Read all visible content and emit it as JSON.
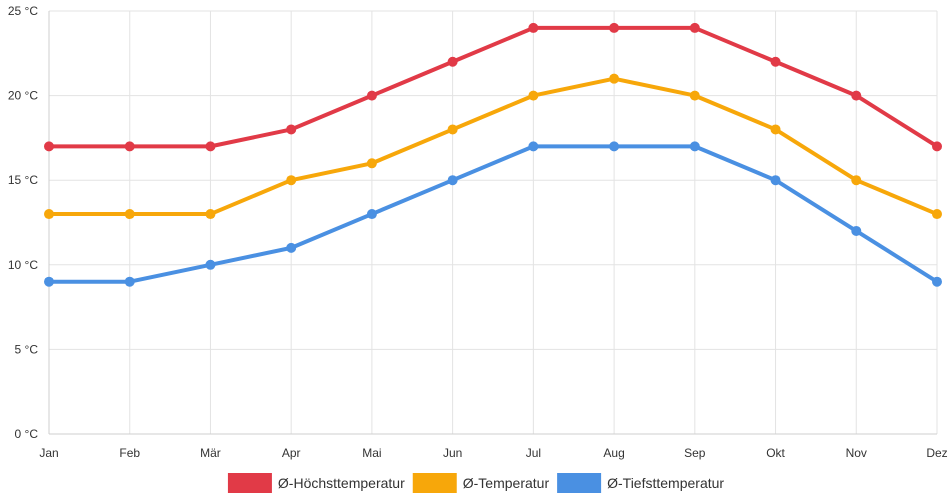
{
  "chart_data": {
    "type": "line",
    "title": "",
    "xlabel": "",
    "ylabel": "",
    "categories": [
      "Jan",
      "Feb",
      "Mär",
      "Apr",
      "Mai",
      "Jun",
      "Jul",
      "Aug",
      "Sep",
      "Okt",
      "Nov",
      "Dez"
    ],
    "ylim": [
      0,
      25
    ],
    "y_ticks": [
      0,
      5,
      10,
      15,
      20,
      25
    ],
    "y_tick_labels": [
      "0 °C",
      "5 °C",
      "10 °C",
      "15 °C",
      "20 °C",
      "25 °C"
    ],
    "grid": true,
    "legend_position": "bottom-center",
    "series": [
      {
        "name": "Ø-Höchsttemperatur",
        "color": "#e13a47",
        "values": [
          17,
          17,
          17,
          18,
          20,
          22,
          24,
          24,
          24,
          22,
          20,
          17
        ]
      },
      {
        "name": "Ø-Temperatur",
        "color": "#f7a70a",
        "values": [
          13,
          13,
          13,
          15,
          16,
          18,
          20,
          21,
          20,
          18,
          15,
          13
        ]
      },
      {
        "name": "Ø-Tiefsttemperatur",
        "color": "#4a90e2",
        "values": [
          9,
          9,
          10,
          11,
          13,
          15,
          17,
          17,
          17,
          15,
          12,
          9
        ]
      }
    ]
  }
}
